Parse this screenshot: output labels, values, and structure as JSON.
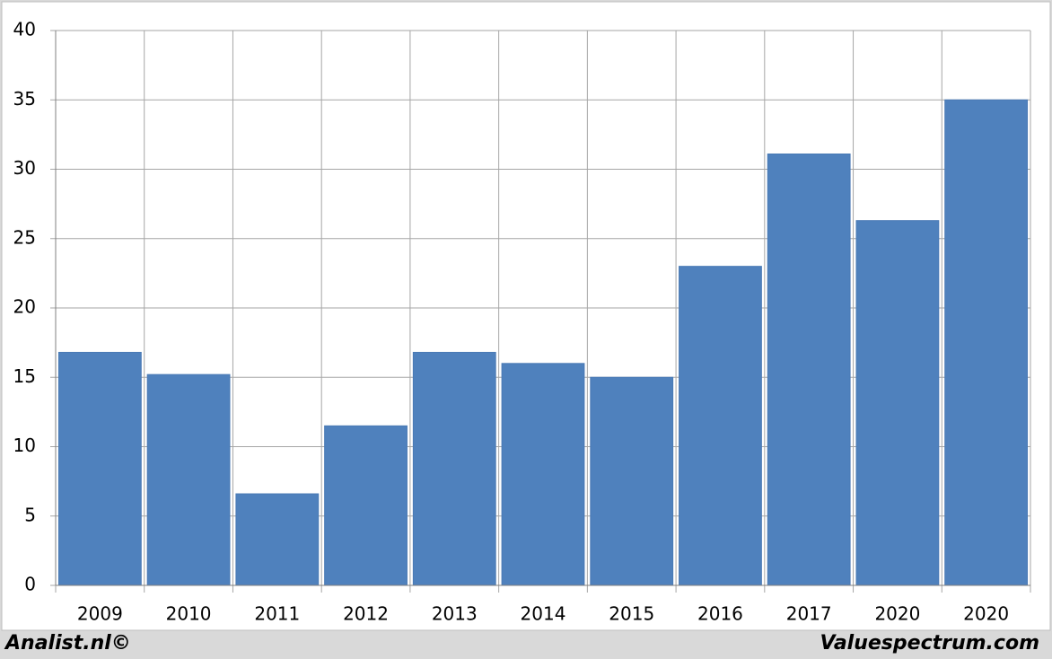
{
  "chart_data": {
    "type": "bar",
    "categories": [
      "2009",
      "2010",
      "2011",
      "2012",
      "2013",
      "2014",
      "2015",
      "2016",
      "2017",
      "2020",
      "2020"
    ],
    "values": [
      16.8,
      15.2,
      6.6,
      11.5,
      16.8,
      16.0,
      15.0,
      23.0,
      31.1,
      26.3,
      35.0
    ],
    "color": "#4f81bd",
    "ylim": [
      0,
      40
    ],
    "yticks": [
      0,
      5,
      10,
      15,
      20,
      25,
      30,
      35,
      40
    ],
    "grid": true,
    "credit_left": "Analist.nl©",
    "credit_right": "Valuespectrum.com"
  }
}
